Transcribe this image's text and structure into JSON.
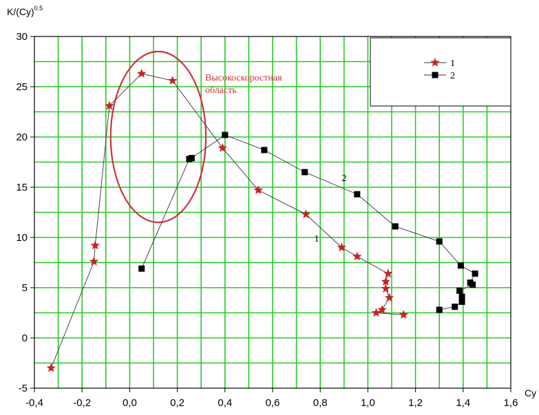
{
  "chart_data": {
    "type": "scatter",
    "title": "",
    "xlabel": "Cy",
    "ylabel_base": "K/(Cy)",
    "ylabel_exp": "0.5",
    "xlim": [
      -0.4,
      1.6
    ],
    "ylim": [
      -5,
      30
    ],
    "x_ticks": [
      -0.4,
      -0.2,
      0.0,
      0.2,
      0.4,
      0.6,
      0.8,
      1.0,
      1.2,
      1.4,
      1.6
    ],
    "x_tick_labels": [
      "-0,4",
      "-0,2",
      "0,0",
      "0,2",
      "0,4",
      "0,6",
      "0,8",
      "1,0",
      "1,2",
      "1,4",
      "1,6"
    ],
    "y_ticks": [
      -5,
      0,
      5,
      10,
      15,
      20,
      25,
      30
    ],
    "y_tick_labels": [
      "-5",
      "0",
      "5",
      "10",
      "15",
      "20",
      "25",
      "30"
    ],
    "x_minor_step": 0.1,
    "y_minor_step": 2.5,
    "grid": true,
    "grid_color": "#22cc22",
    "legend_position": "top-right",
    "series": [
      {
        "name": "1",
        "marker": "star",
        "color": "#cc2222",
        "points": [
          [
            -0.33,
            -3.0
          ],
          [
            -0.15,
            7.6
          ],
          [
            -0.145,
            9.2
          ],
          [
            -0.085,
            23.1
          ],
          [
            0.05,
            26.3
          ],
          [
            0.18,
            25.6
          ],
          [
            0.39,
            18.9
          ],
          [
            0.54,
            14.7
          ],
          [
            0.74,
            12.3
          ],
          [
            0.89,
            9.0
          ],
          [
            0.955,
            8.1
          ],
          [
            1.085,
            6.4
          ],
          [
            1.075,
            5.6
          ],
          [
            1.075,
            4.9
          ],
          [
            1.09,
            4.0
          ],
          [
            1.06,
            2.8
          ],
          [
            1.035,
            2.5
          ],
          [
            1.15,
            2.3
          ]
        ]
      },
      {
        "name": "2",
        "marker": "square",
        "color": "#000000",
        "points": [
          [
            0.05,
            6.9
          ],
          [
            0.25,
            17.8
          ],
          [
            0.26,
            17.9
          ],
          [
            0.4,
            20.2
          ],
          [
            0.565,
            18.7
          ],
          [
            0.735,
            16.5
          ],
          [
            0.955,
            14.3
          ],
          [
            1.115,
            11.1
          ],
          [
            1.3,
            9.6
          ],
          [
            1.39,
            7.2
          ],
          [
            1.45,
            6.4
          ],
          [
            1.43,
            5.5
          ],
          [
            1.44,
            5.3
          ],
          [
            1.385,
            4.7
          ],
          [
            1.395,
            4.1
          ],
          [
            1.395,
            3.6
          ],
          [
            1.365,
            3.1
          ],
          [
            1.3,
            2.8
          ]
        ]
      }
    ],
    "annotations": [
      {
        "text": "1",
        "x": 0.775,
        "y": 9.6
      },
      {
        "text": "2",
        "x": 0.89,
        "y": 15.6
      }
    ],
    "region": {
      "label_line1": "Высокоскоростная",
      "label_line2": "область",
      "color": "#d0303a",
      "center": [
        0.12,
        20.0
      ],
      "radius_x": 0.2,
      "radius_y": 8.5
    }
  }
}
